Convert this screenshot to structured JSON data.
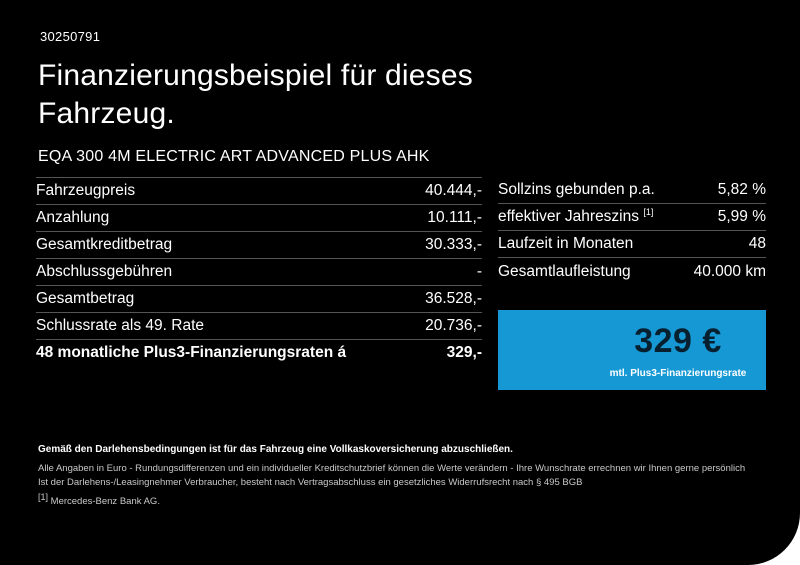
{
  "page": {
    "vehicle_id": "30250791",
    "title_line1": "Finanzierungsbeispiel für dieses",
    "title_line2": "Fahrzeug.",
    "model": "EQA 300 4M ELECTRIC ART ADVANCED PLUS AHK"
  },
  "finance_table": {
    "rows": [
      {
        "label": "Fahrzeugpreis",
        "value": "40.444,-"
      },
      {
        "label": "Anzahlung",
        "value": "10.111,-"
      },
      {
        "label": "Gesamtkreditbetrag",
        "value": "30.333,-"
      },
      {
        "label": "Abschlussgebühren",
        "value": "-"
      },
      {
        "label": "Gesamtbetrag",
        "value": "36.528,-"
      },
      {
        "label": "Schlussrate als 49. Rate",
        "value": "20.736,-"
      },
      {
        "label": "48 monatliche Plus3-Finanzierungsraten á",
        "value": "329,-"
      }
    ]
  },
  "conditions_table": {
    "rows": [
      {
        "label": "Sollzins gebunden p.a.",
        "sup": "",
        "value": "5,82 %"
      },
      {
        "label": "effektiver Jahreszins",
        "sup": "[1]",
        "value": "5,99 %"
      },
      {
        "label": "Laufzeit in Monaten",
        "sup": "",
        "value": "48"
      },
      {
        "label": "Gesamtlaufleistung",
        "sup": "",
        "value": "40.000 km"
      }
    ]
  },
  "rate_box": {
    "amount": "329 €",
    "caption": "mtl. Plus3-Finanzierungsrate",
    "background": "#1698d4",
    "amount_color": "#06202f"
  },
  "footnotes": {
    "insurance": "Gemäß den Darlehensbedingungen ist für das Fahrzeug eine Vollkaskoversicherung abzuschließen.",
    "general": "Alle Angaben in Euro - Rundungsdifferenzen und ein individueller Kreditschutzbrief können die Werte verändern - Ihre Wunschrate errechnen wir Ihnen gerne persönlich",
    "withdrawal": "Ist der Darlehens-/Leasingnehmer Verbraucher, besteht nach Vertragsabschluss ein gesetzliches Widerrufsrecht nach § 495 BGB",
    "bank_sup": "[1]",
    "bank": "Mercedes-Benz Bank AG."
  }
}
